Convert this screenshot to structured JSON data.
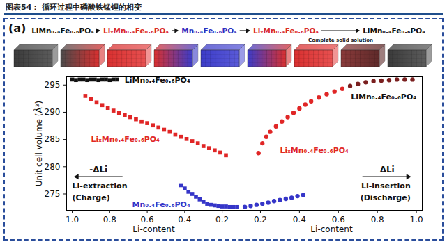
{
  "title": "图表54： 循环过程中磷酸铁锰锂的相变",
  "panel_label": "(a)",
  "diagram": {
    "phases": [
      {
        "label": "LiMn₀.₄Fe₀.₆PO₄",
        "color": "#111111"
      },
      {
        "label": "LiₓMn₀.₄Fe₀.₆PO₄",
        "color": "#d92b2b"
      },
      {
        "label": "Mn₀.₄Fe₀.₆PO₄",
        "color": "#2f2fbf"
      },
      {
        "label": "LiₓMn₀.₄Fe₀.₆PO₄",
        "color": "#d92b2b"
      },
      {
        "label": "LiMn₀.₄Fe₀.₆PO₄",
        "color": "#111111"
      }
    ],
    "note": "Complete solid solution"
  },
  "chart_data": [
    {
      "type": "scatter",
      "x_label": "Li-content",
      "y_label": "Unit cell volume (Å³)",
      "xlim": [
        1.03,
        0.1
      ],
      "xticks": [
        {
          "value": 1,
          "label": "1.0"
        },
        0.8,
        0.6,
        0.4,
        0.2
      ],
      "ylim": [
        272,
        296.5
      ],
      "yticks": [
        275,
        280,
        285,
        290,
        295
      ],
      "series": [
        {
          "color": "#111111",
          "marker": "square",
          "x": [
            1.0,
            0.98,
            0.96,
            0.94,
            0.92,
            0.9,
            0.88,
            0.86,
            0.84,
            0.82,
            0.8,
            0.78,
            0.76
          ],
          "values": [
            296.0,
            295.9,
            296.0,
            296.0,
            295.9,
            296.0,
            296.0,
            295.9,
            296.0,
            296.0,
            295.9,
            296.0,
            296.0
          ]
        },
        {
          "color": "#e02626",
          "marker": "square",
          "x": [
            0.93,
            0.9,
            0.87,
            0.84,
            0.81,
            0.78,
            0.75,
            0.72,
            0.69,
            0.66,
            0.63,
            0.6,
            0.57,
            0.54,
            0.51,
            0.48,
            0.45,
            0.42,
            0.39,
            0.36,
            0.33,
            0.3,
            0.27,
            0.24,
            0.21,
            0.18
          ],
          "values": [
            293.0,
            292.4,
            291.8,
            291.3,
            290.8,
            290.3,
            289.9,
            289.5,
            289.1,
            288.7,
            288.3,
            288.0,
            287.6,
            287.2,
            286.8,
            286.4,
            285.9,
            285.5,
            285.1,
            284.7,
            284.3,
            283.8,
            283.4,
            283.0,
            282.6,
            282.1
          ]
        },
        {
          "color": "#3535c8",
          "marker": "square",
          "x": [
            0.42,
            0.4,
            0.38,
            0.36,
            0.34,
            0.32,
            0.3,
            0.28,
            0.26,
            0.24,
            0.22,
            0.2,
            0.18,
            0.16,
            0.14,
            0.12
          ],
          "values": [
            276.6,
            276.0,
            275.4,
            275.0,
            274.5,
            274.0,
            273.6,
            273.2,
            273.0,
            272.9,
            272.8,
            272.7,
            272.7,
            272.6,
            272.6,
            272.6
          ]
        }
      ],
      "annotations": [
        {
          "text": "LiMn₀.₄Fe₀.₆PO₄",
          "x": 0.72,
          "y": 295.9,
          "color": "#111111"
        },
        {
          "text": "LiₓMn₀.₄Fe₀.₆PO₄",
          "x": 0.9,
          "y": 285.0,
          "color": "#e02626"
        },
        {
          "text": "Mn₀.₄Fe₀.₆PO₄",
          "x": 0.68,
          "y": 273.0,
          "color": "#3535c8"
        },
        {
          "text": "Li-extraction",
          "x": 1.0,
          "y": 276.5,
          "color": "#111111"
        },
        {
          "text": "(Charge)",
          "x": 1.0,
          "y": 274.3,
          "color": "#111111"
        }
      ],
      "arrow_label": {
        "text": "-ΔLi",
        "x": 0.86,
        "y": 279.5,
        "color": "#111111"
      }
    },
    {
      "type": "scatter",
      "x_label": "Li-content",
      "xlim": [
        0.1,
        1.03
      ],
      "xticks": [
        0.2,
        0.4,
        0.6,
        0.8,
        {
          "value": 1,
          "label": "1.0"
        }
      ],
      "ylim": [
        272,
        296.5
      ],
      "tick_labels": "x",
      "series": [
        {
          "color": "#3535c8",
          "marker": "circle",
          "x": [
            0.12,
            0.15,
            0.18,
            0.21,
            0.24,
            0.27,
            0.3,
            0.33,
            0.36,
            0.39,
            0.42
          ],
          "values": [
            272.6,
            272.8,
            273.0,
            273.2,
            273.4,
            273.7,
            273.9,
            274.1,
            274.3,
            274.6,
            274.8
          ]
        },
        {
          "color": "#e02626",
          "marker": "circle",
          "x": [
            0.19,
            0.21,
            0.23,
            0.25,
            0.28,
            0.31,
            0.34,
            0.37,
            0.4,
            0.43,
            0.46,
            0.5,
            0.54,
            0.58,
            0.62
          ],
          "values": [
            282.5,
            284.3,
            285.5,
            286.4,
            287.4,
            288.3,
            289.1,
            289.9,
            290.7,
            291.4,
            292.0,
            292.7,
            293.3,
            293.8,
            294.3
          ]
        },
        {
          "color": "#7a1f1f",
          "marker": "circle",
          "x": [
            0.66,
            0.7,
            0.74,
            0.78,
            0.82,
            0.86,
            0.9,
            0.94,
            0.98
          ],
          "values": [
            294.8,
            295.2,
            295.5,
            295.7,
            295.8,
            295.9,
            296.0,
            296.0,
            296.0
          ]
        }
      ],
      "annotations": [
        {
          "text": "LiMn₀.₄Fe₀.₆PO₄",
          "x": 1.0,
          "y": 292.8,
          "color": "#111111"
        },
        {
          "text": "LiₓMn₀.₄Fe₀.₆PO₄",
          "x": 0.3,
          "y": 283.0,
          "color": "#e02626"
        },
        {
          "text": "Li-insertion",
          "x": 0.97,
          "y": 276.5,
          "color": "#111111"
        },
        {
          "text": "(Discharge)",
          "x": 0.97,
          "y": 274.3,
          "color": "#111111"
        }
      ],
      "arrow_label": {
        "text": "ΔLi",
        "x": 0.85,
        "y": 279.5,
        "color": "#111111"
      }
    }
  ]
}
